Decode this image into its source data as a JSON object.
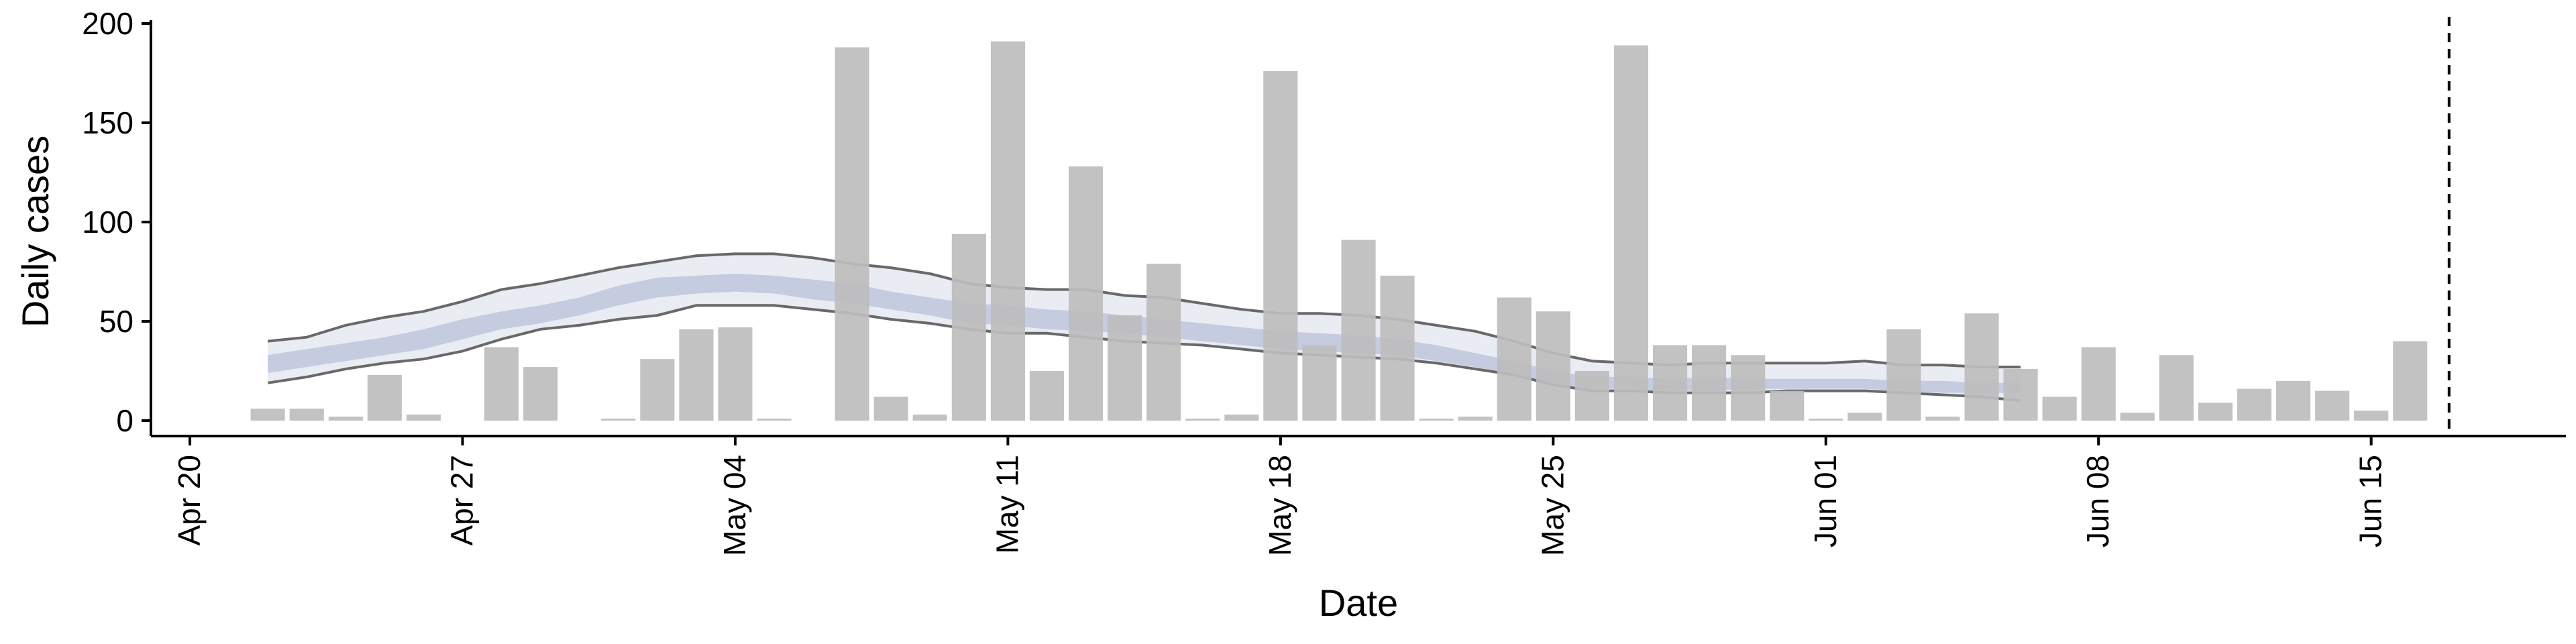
{
  "chart_data": {
    "type": "bar",
    "xlabel": "Date",
    "ylabel": "Daily cases",
    "ylim": [
      0,
      200
    ],
    "y_ticks": [
      0,
      50,
      100,
      150,
      200
    ],
    "x_range": [
      "2020-04-19",
      "2020-06-20"
    ],
    "x_ticks": [
      {
        "date": "2020-04-20",
        "label": "Apr 20"
      },
      {
        "date": "2020-04-27",
        "label": "Apr 27"
      },
      {
        "date": "2020-05-04",
        "label": "May 04"
      },
      {
        "date": "2020-05-11",
        "label": "May 11"
      },
      {
        "date": "2020-05-18",
        "label": "May 18"
      },
      {
        "date": "2020-05-25",
        "label": "May 25"
      },
      {
        "date": "2020-06-01",
        "label": "Jun 01"
      },
      {
        "date": "2020-06-08",
        "label": "Jun 08"
      },
      {
        "date": "2020-06-15",
        "label": "Jun 15"
      }
    ],
    "bars": {
      "dates": [
        "2020-04-22",
        "2020-04-23",
        "2020-04-24",
        "2020-04-25",
        "2020-04-26",
        "2020-04-27",
        "2020-04-28",
        "2020-04-29",
        "2020-04-30",
        "2020-05-01",
        "2020-05-02",
        "2020-05-03",
        "2020-05-04",
        "2020-05-05",
        "2020-05-06",
        "2020-05-07",
        "2020-05-08",
        "2020-05-09",
        "2020-05-10",
        "2020-05-11",
        "2020-05-12",
        "2020-05-13",
        "2020-05-14",
        "2020-05-15",
        "2020-05-16",
        "2020-05-17",
        "2020-05-18",
        "2020-05-19",
        "2020-05-20",
        "2020-05-21",
        "2020-05-22",
        "2020-05-23",
        "2020-05-24",
        "2020-05-25",
        "2020-05-26",
        "2020-05-27",
        "2020-05-28",
        "2020-05-29",
        "2020-05-30",
        "2020-05-31",
        "2020-06-01",
        "2020-06-02",
        "2020-06-03",
        "2020-06-04",
        "2020-06-05",
        "2020-06-06",
        "2020-06-07",
        "2020-06-08",
        "2020-06-09",
        "2020-06-10",
        "2020-06-11",
        "2020-06-12",
        "2020-06-13",
        "2020-06-14",
        "2020-06-15",
        "2020-06-16"
      ],
      "values": [
        6,
        6,
        2,
        23,
        3,
        0,
        37,
        27,
        0,
        1,
        31,
        46,
        47,
        1,
        0,
        188,
        12,
        3,
        94,
        191,
        25,
        128,
        53,
        79,
        1,
        3,
        176,
        38,
        91,
        73,
        1,
        2,
        62,
        55,
        25,
        189,
        38,
        38,
        33,
        15,
        1,
        4,
        46,
        2,
        54,
        26,
        12,
        37,
        4,
        33,
        9,
        16,
        20,
        15,
        5,
        40
      ],
      "color": "#bdbdbd"
    },
    "estimate": {
      "dates": [
        "2020-04-22",
        "2020-04-23",
        "2020-04-24",
        "2020-04-25",
        "2020-04-26",
        "2020-04-27",
        "2020-04-28",
        "2020-04-29",
        "2020-04-30",
        "2020-05-01",
        "2020-05-02",
        "2020-05-03",
        "2020-05-04",
        "2020-05-05",
        "2020-05-06",
        "2020-05-07",
        "2020-05-08",
        "2020-05-09",
        "2020-05-10",
        "2020-05-11",
        "2020-05-12",
        "2020-05-13",
        "2020-05-14",
        "2020-05-15",
        "2020-05-16",
        "2020-05-17",
        "2020-05-18",
        "2020-05-19",
        "2020-05-20",
        "2020-05-21",
        "2020-05-22",
        "2020-05-23",
        "2020-05-24",
        "2020-05-25",
        "2020-05-26",
        "2020-05-27",
        "2020-05-28",
        "2020-05-29",
        "2020-05-30",
        "2020-05-31",
        "2020-06-01",
        "2020-06-02",
        "2020-06-03",
        "2020-06-04",
        "2020-06-05",
        "2020-06-06"
      ],
      "outer_upper": [
        40,
        42,
        48,
        52,
        55,
        60,
        66,
        69,
        73,
        77,
        80,
        83,
        84,
        84,
        82,
        79,
        77,
        74,
        69,
        67,
        66,
        66,
        63,
        62,
        59,
        56,
        54,
        54,
        53,
        51,
        48,
        45,
        40,
        34,
        30,
        29,
        28,
        29,
        29,
        29,
        29,
        30,
        28,
        28,
        27,
        27
      ],
      "outer_lower": [
        19,
        22,
        26,
        29,
        31,
        35,
        41,
        46,
        48,
        51,
        53,
        58,
        58,
        58,
        56,
        54,
        51,
        49,
        46,
        44,
        44,
        42,
        40,
        39,
        38,
        36,
        34,
        33,
        32,
        31,
        29,
        26,
        23,
        18,
        15,
        15,
        14,
        14,
        14,
        15,
        15,
        15,
        14,
        13,
        12,
        10
      ],
      "inner_upper": [
        33,
        36,
        39,
        42,
        46,
        51,
        55,
        58,
        62,
        68,
        72,
        73,
        74,
        73,
        71,
        69,
        65,
        62,
        59,
        58,
        56,
        55,
        53,
        51,
        49,
        47,
        45,
        44,
        43,
        41,
        38,
        34,
        30,
        25,
        22,
        22,
        21,
        22,
        21,
        21,
        21,
        21,
        20,
        20,
        19,
        19
      ],
      "inner_lower": [
        24,
        27,
        30,
        33,
        36,
        41,
        46,
        49,
        53,
        58,
        62,
        64,
        65,
        64,
        61,
        59,
        56,
        53,
        49,
        48,
        46,
        45,
        44,
        42,
        40,
        38,
        36,
        35,
        34,
        33,
        30,
        27,
        23,
        18,
        16,
        16,
        15,
        15,
        16,
        16,
        16,
        16,
        15,
        14,
        14,
        14
      ],
      "outer_color": "#e9ebf3",
      "inner_color": "#c3cadd",
      "line_color": "#696969"
    },
    "vline": {
      "date": "2020-06-17",
      "style": "dashed"
    },
    "grid": false,
    "legend": "none"
  }
}
